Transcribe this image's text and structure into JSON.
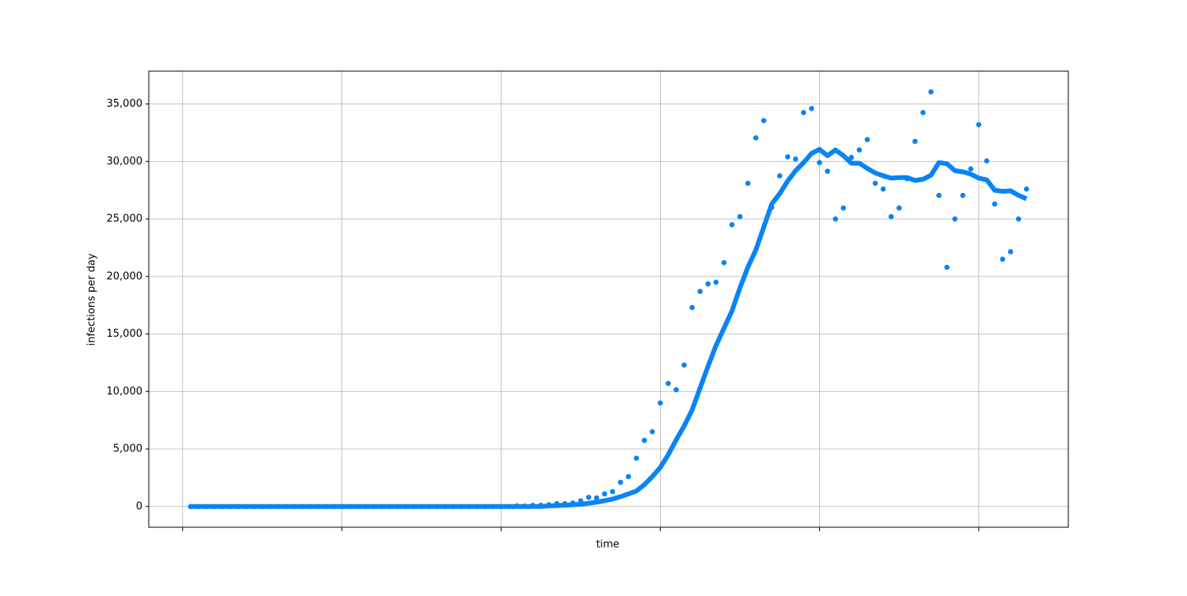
{
  "chart_data": {
    "type": "line",
    "x_label": "time",
    "y_label": "infections per day",
    "x": [
      1,
      2,
      3,
      4,
      5,
      6,
      7,
      8,
      9,
      10,
      11,
      12,
      13,
      14,
      15,
      16,
      17,
      18,
      19,
      20,
      21,
      22,
      23,
      24,
      25,
      26,
      27,
      28,
      29,
      30,
      31,
      32,
      33,
      34,
      35,
      36,
      37,
      38,
      39,
      40,
      41,
      42,
      43,
      44,
      45,
      46,
      47,
      48,
      49,
      50,
      51,
      52,
      53,
      54,
      55,
      56,
      57,
      58,
      59,
      60,
      61,
      62,
      63,
      64,
      65,
      66,
      67,
      68,
      69,
      70,
      71,
      72,
      73,
      74,
      75,
      76,
      77,
      78,
      79,
      80,
      81,
      82,
      83,
      84,
      85,
      86,
      87,
      88,
      89,
      90,
      91,
      92,
      93,
      94,
      95,
      96,
      97,
      98,
      99,
      100,
      101,
      102,
      103,
      104,
      105,
      106
    ],
    "series": [
      {
        "type": "scatter",
        "color": "#0a84f5",
        "values": [
          0,
          0,
          0,
          0,
          0,
          0,
          0,
          0,
          0,
          0,
          0,
          0,
          0,
          0,
          0,
          0,
          0,
          0,
          0,
          0,
          0,
          0,
          0,
          0,
          0,
          0,
          0,
          0,
          0,
          0,
          0,
          0,
          0,
          0,
          0,
          0,
          0,
          0,
          0,
          0,
          0,
          50,
          30,
          100,
          100,
          150,
          250,
          250,
          300,
          500,
          800,
          750,
          1100,
          1300,
          2100,
          2600,
          4200,
          5750,
          6500,
          9000,
          10700,
          10150,
          12300,
          17300,
          18700,
          19350,
          19500,
          21200,
          24500,
          25200,
          28100,
          32050,
          33550,
          26000,
          28750,
          30400,
          30200,
          34250,
          34600,
          29900,
          29150,
          25000,
          25950,
          30350,
          31000,
          31900,
          28100,
          27600,
          25200,
          25950,
          28500,
          31750,
          34250,
          36050,
          27050,
          20800,
          25000,
          27050,
          29350,
          33200,
          30050,
          26300,
          21500,
          22150,
          25000,
          27600
        ]
      },
      {
        "type": "line",
        "color": "#0a84f5",
        "values": [
          0,
          0,
          0,
          0,
          0,
          0,
          0,
          0,
          0,
          0,
          0,
          0,
          0,
          0,
          0,
          0,
          0,
          0,
          0,
          0,
          0,
          0,
          0,
          0,
          0,
          0,
          0,
          0,
          0,
          0,
          0,
          0,
          0,
          0,
          0,
          0,
          0,
          0,
          0,
          0,
          0,
          0,
          0,
          0,
          0,
          50,
          80,
          110,
          150,
          200,
          280,
          380,
          500,
          650,
          850,
          1100,
          1350,
          1900,
          2600,
          3400,
          4500,
          5800,
          7000,
          8400,
          10300,
          12200,
          14000,
          15500,
          17000,
          19000,
          20800,
          22300,
          24300,
          26300,
          27200,
          28300,
          29200,
          29900,
          30700,
          31050,
          30500,
          31000,
          30500,
          29850,
          29850,
          29400,
          29000,
          28750,
          28550,
          28600,
          28600,
          28350,
          28450,
          28800,
          29900,
          29800,
          29200,
          29100,
          28900,
          28550,
          28400,
          27500,
          27400,
          27450,
          27050,
          26750
        ]
      }
    ],
    "xlim": [
      -4.25,
      111.25
    ],
    "xticks": [
      0,
      20,
      40,
      60,
      80,
      100
    ],
    "ylim": [
      -1802,
      37852
    ],
    "yticks": [
      0,
      {
        "value": 5000,
        "label": "5,000"
      },
      {
        "value": 10000,
        "label": "10,000"
      },
      {
        "value": 15000,
        "label": "15,000"
      },
      {
        "value": 20000,
        "label": "20,000"
      },
      {
        "value": 25000,
        "label": "25,000"
      },
      {
        "value": 30000,
        "label": "30,000"
      },
      {
        "value": 35000,
        "label": "35,000"
      }
    ],
    "grid": true
  }
}
